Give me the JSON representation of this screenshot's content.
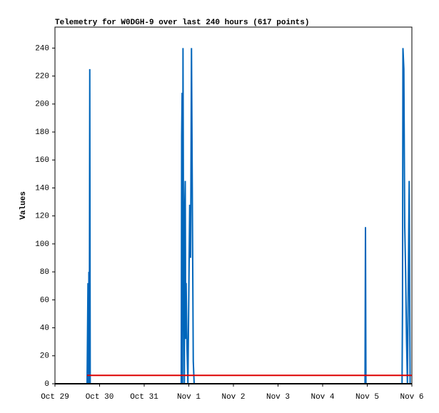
{
  "chart_data": {
    "type": "line",
    "title": "Telemetry for W0DGH-9 over last 240 hours (617 points)",
    "y_label": "Values",
    "xlim": [
      0,
      8
    ],
    "ylim": [
      0,
      255
    ],
    "xticks": [
      {
        "value": 0,
        "label": "Oct 29"
      },
      {
        "value": 1,
        "label": "Oct 30"
      },
      {
        "value": 2,
        "label": "Oct 31"
      },
      {
        "value": 3,
        "label": "Nov 1"
      },
      {
        "value": 4,
        "label": "Nov 2"
      },
      {
        "value": 5,
        "label": "Nov 3"
      },
      {
        "value": 6,
        "label": "Nov 4"
      },
      {
        "value": 7,
        "label": "Nov 5"
      },
      {
        "value": 8,
        "label": "Nov 6"
      }
    ],
    "yticks": [
      0,
      20,
      40,
      60,
      80,
      100,
      120,
      140,
      160,
      180,
      200,
      220,
      240
    ],
    "grid": false,
    "series": [
      {
        "color": "#0066bb",
        "x": [
          0.72,
          0.74,
          0.75,
          0.76,
          0.77,
          0.78,
          0.79,
          2.83,
          2.84,
          2.85,
          2.86,
          2.87,
          2.88,
          2.9,
          2.91,
          2.92,
          2.93,
          2.94,
          2.95,
          2.96,
          2.98,
          3.0,
          3.02,
          3.04,
          3.06,
          3.08,
          3.1,
          3.12,
          6.95,
          6.96,
          6.97,
          7.78,
          7.79,
          7.8,
          7.82,
          7.84,
          7.86,
          7.88,
          7.9,
          7.94,
          7.96
        ],
        "values": [
          0,
          72,
          0,
          80,
          0,
          225,
          0,
          0,
          177,
          208,
          0,
          240,
          120,
          0,
          128,
          145,
          32,
          72,
          48,
          25,
          0,
          64,
          128,
          90,
          240,
          128,
          16,
          0,
          0,
          112,
          0,
          0,
          56,
          240,
          225,
          112,
          80,
          32,
          0,
          145,
          0
        ]
      },
      {
        "color": "#dd0000",
        "x": [
          0.72,
          8
        ],
        "values": [
          6,
          6
        ]
      }
    ]
  }
}
